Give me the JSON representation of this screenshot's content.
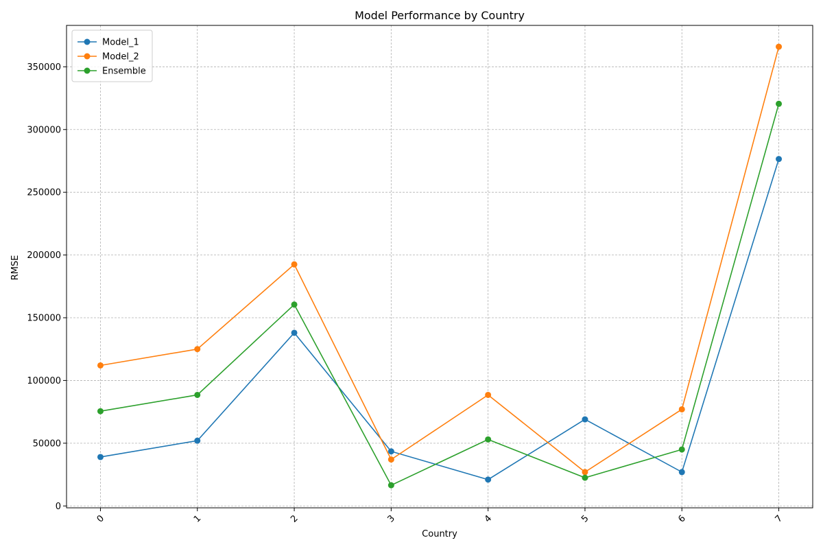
{
  "chart_data": {
    "type": "line",
    "title": "Model Performance by Country",
    "xlabel": "Country",
    "ylabel": "RMSE",
    "x": [
      0,
      1,
      2,
      3,
      4,
      5,
      6,
      7
    ],
    "x_tick_labels": [
      "0",
      "1",
      "2",
      "3",
      "4",
      "5",
      "6",
      "7"
    ],
    "y_ticks": [
      0,
      50000,
      100000,
      150000,
      200000,
      250000,
      300000,
      350000
    ],
    "y_tick_labels": [
      "0",
      "50000",
      "100000",
      "150000",
      "200000",
      "250000",
      "300000",
      "350000"
    ],
    "xlim": [
      -0.35,
      7.35
    ],
    "ylim": [
      -1500,
      383000
    ],
    "grid": true,
    "legend_position": "top-left",
    "series": [
      {
        "name": "Model_1",
        "color": "#1f77b4",
        "values": [
          39000,
          52000,
          138000,
          43500,
          21000,
          69000,
          27000,
          276500
        ]
      },
      {
        "name": "Model_2",
        "color": "#ff7f0e",
        "values": [
          112000,
          125000,
          192500,
          37000,
          88500,
          27000,
          77000,
          366000
        ]
      },
      {
        "name": "Ensemble",
        "color": "#2ca02c",
        "values": [
          75500,
          88500,
          160500,
          16500,
          53000,
          22500,
          45000,
          320500
        ]
      }
    ]
  }
}
